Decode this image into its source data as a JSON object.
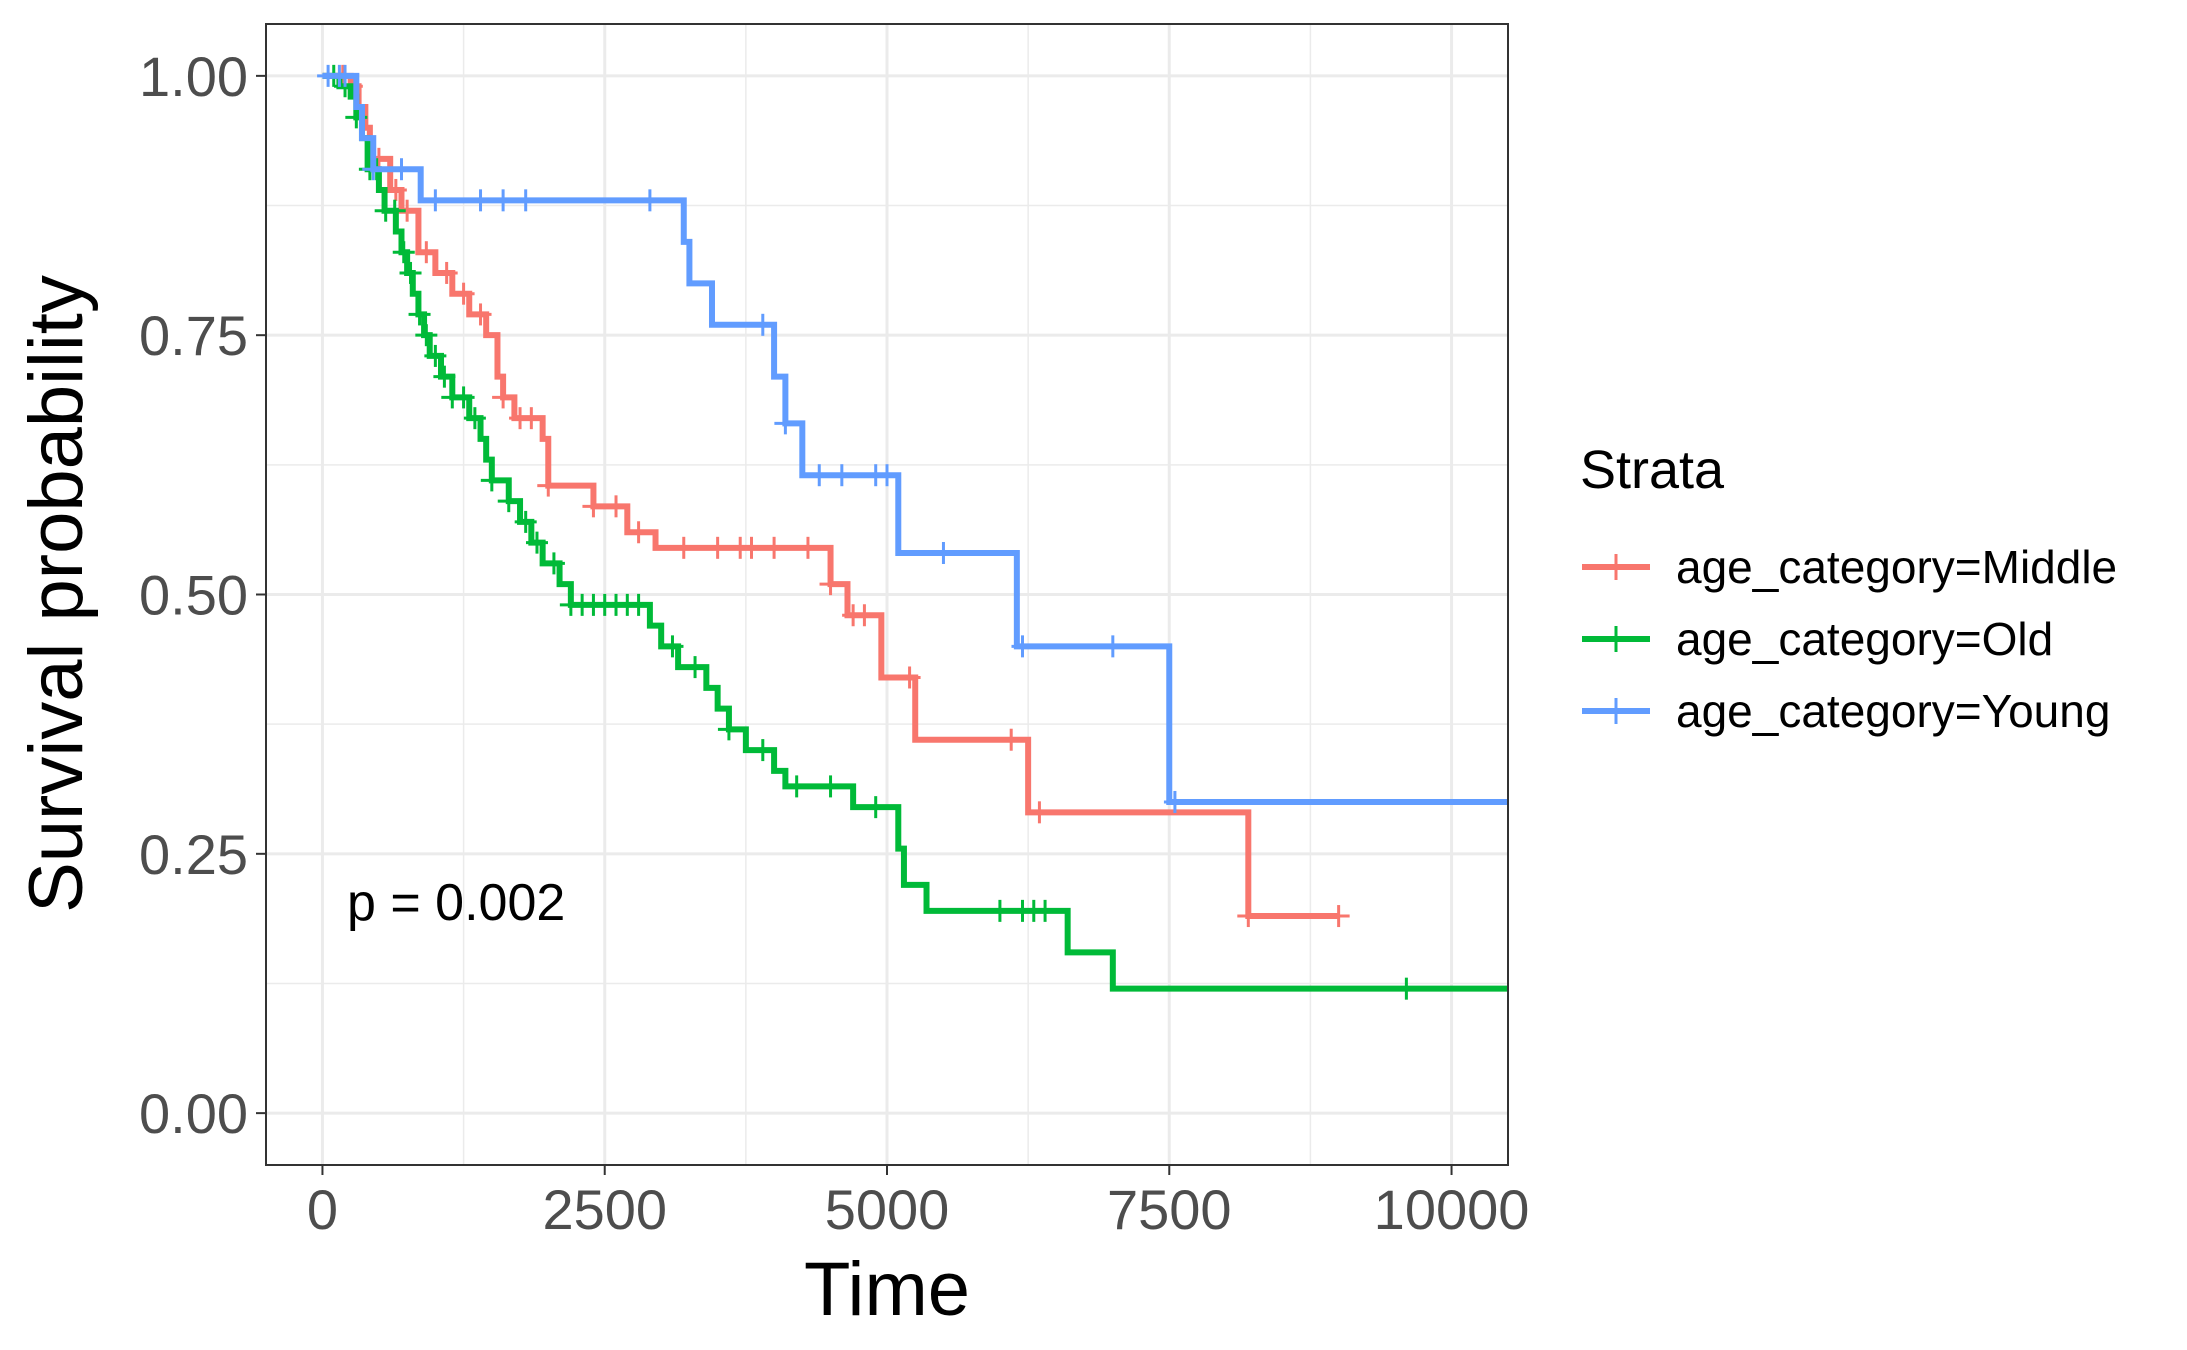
{
  "chart_data": {
    "type": "line",
    "subtype": "kaplan-meier step curves",
    "xlabel": "Time",
    "ylabel": "Survival probability",
    "xlim": [
      -500,
      10500
    ],
    "ylim": [
      -0.05,
      1.05
    ],
    "x_ticks": [
      "0",
      "2500",
      "5000",
      "7500",
      "10000"
    ],
    "y_ticks": [
      "0.00",
      "0.25",
      "0.50",
      "0.75",
      "1.00"
    ],
    "grid": true,
    "annotation": "p = 0.002",
    "legend": {
      "title": "Strata",
      "position": "right",
      "entries": [
        "age_category=Middle",
        "age_category=Old",
        "age_category=Young"
      ]
    },
    "series": [
      {
        "name": "age_category=Middle",
        "color": "#F8766D",
        "steps": [
          [
            0,
            1.0
          ],
          [
            250,
            0.99
          ],
          [
            320,
            0.97
          ],
          [
            380,
            0.95
          ],
          [
            420,
            0.92
          ],
          [
            600,
            0.89
          ],
          [
            700,
            0.87
          ],
          [
            850,
            0.83
          ],
          [
            1000,
            0.81
          ],
          [
            1150,
            0.79
          ],
          [
            1300,
            0.77
          ],
          [
            1450,
            0.75
          ],
          [
            1550,
            0.71
          ],
          [
            1600,
            0.69
          ],
          [
            1700,
            0.67
          ],
          [
            1950,
            0.65
          ],
          [
            2000,
            0.605
          ],
          [
            2400,
            0.585
          ],
          [
            2700,
            0.56
          ],
          [
            2950,
            0.545
          ],
          [
            4500,
            0.51
          ],
          [
            4650,
            0.48
          ],
          [
            4950,
            0.42
          ],
          [
            5250,
            0.36
          ],
          [
            6250,
            0.29
          ],
          [
            8200,
            0.19
          ],
          [
            9000,
            0.19
          ]
        ],
        "censor_x": [
          180,
          260,
          500,
          650,
          750,
          920,
          1100,
          1250,
          1400,
          1600,
          1750,
          1850,
          2000,
          2400,
          2600,
          2800,
          3200,
          3500,
          3700,
          3800,
          4000,
          4300,
          4500,
          4700,
          4800,
          5200,
          6100,
          6350,
          8200,
          9000
        ]
      },
      {
        "name": "age_category=Old",
        "color": "#00BA38",
        "steps": [
          [
            0,
            1.0
          ],
          [
            150,
            0.99
          ],
          [
            250,
            0.98
          ],
          [
            300,
            0.96
          ],
          [
            350,
            0.94
          ],
          [
            400,
            0.91
          ],
          [
            500,
            0.89
          ],
          [
            550,
            0.87
          ],
          [
            650,
            0.85
          ],
          [
            700,
            0.83
          ],
          [
            750,
            0.81
          ],
          [
            800,
            0.79
          ],
          [
            850,
            0.77
          ],
          [
            900,
            0.75
          ],
          [
            950,
            0.73
          ],
          [
            1050,
            0.71
          ],
          [
            1150,
            0.69
          ],
          [
            1300,
            0.67
          ],
          [
            1400,
            0.65
          ],
          [
            1450,
            0.63
          ],
          [
            1500,
            0.61
          ],
          [
            1650,
            0.59
          ],
          [
            1750,
            0.57
          ],
          [
            1850,
            0.55
          ],
          [
            1950,
            0.53
          ],
          [
            2100,
            0.51
          ],
          [
            2200,
            0.49
          ],
          [
            2900,
            0.47
          ],
          [
            3000,
            0.45
          ],
          [
            3150,
            0.43
          ],
          [
            3400,
            0.41
          ],
          [
            3500,
            0.39
          ],
          [
            3600,
            0.37
          ],
          [
            3750,
            0.35
          ],
          [
            4000,
            0.33
          ],
          [
            4100,
            0.315
          ],
          [
            4700,
            0.295
          ],
          [
            5100,
            0.255
          ],
          [
            5150,
            0.22
          ],
          [
            5350,
            0.195
          ],
          [
            6600,
            0.155
          ],
          [
            7000,
            0.12
          ],
          [
            10500,
            0.12
          ]
        ],
        "censor_x": [
          100,
          200,
          300,
          420,
          480,
          560,
          640,
          720,
          780,
          860,
          920,
          1000,
          1080,
          1150,
          1250,
          1350,
          1500,
          1650,
          1800,
          1900,
          2050,
          2200,
          2300,
          2400,
          2500,
          2600,
          2700,
          2800,
          3100,
          3300,
          3600,
          3900,
          4200,
          4500,
          4900,
          6000,
          6200,
          6300,
          6400,
          9600
        ]
      },
      {
        "name": "age_category=Young",
        "color": "#619CFF",
        "steps": [
          [
            0,
            1.0
          ],
          [
            300,
            0.97
          ],
          [
            350,
            0.94
          ],
          [
            450,
            0.91
          ],
          [
            870,
            0.88
          ],
          [
            3200,
            0.84
          ],
          [
            3250,
            0.8
          ],
          [
            3450,
            0.76
          ],
          [
            4000,
            0.71
          ],
          [
            4100,
            0.665
          ],
          [
            4250,
            0.615
          ],
          [
            5100,
            0.54
          ],
          [
            6150,
            0.45
          ],
          [
            7500,
            0.3
          ],
          [
            10500,
            0.3
          ]
        ],
        "censor_x": [
          50,
          150,
          200,
          450,
          700,
          1000,
          1400,
          1600,
          1800,
          2900,
          3900,
          4100,
          4400,
          4600,
          4900,
          5000,
          5500,
          6200,
          7000,
          7550
        ]
      }
    ]
  }
}
